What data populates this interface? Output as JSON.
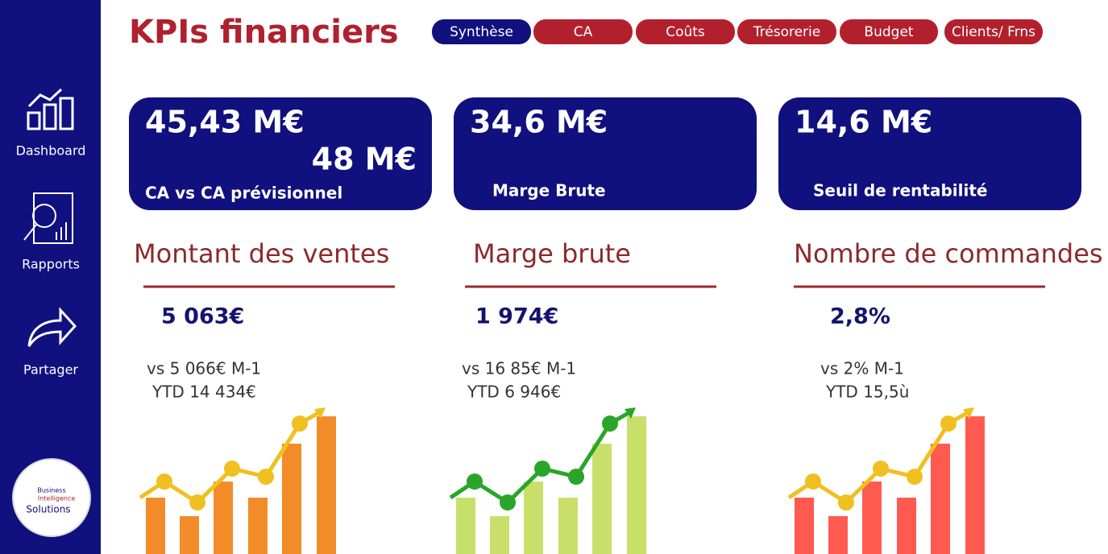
{
  "header": {
    "title": "KPIs financiers",
    "tabs": [
      "Synthèse",
      "CA",
      "Coûts",
      "Trésorerie",
      "Budget",
      "Clients/ Frns"
    ]
  },
  "sidebar": {
    "items": [
      "Dashboard",
      "Rapports",
      "Partager"
    ],
    "logo": [
      "Business",
      "Intelligence",
      "Solutions"
    ]
  },
  "cards": [
    {
      "values": [
        "45,43 M€",
        "48 M€"
      ],
      "label": "CA vs CA prévisionnel"
    },
    {
      "values": [
        "34,6 M€"
      ],
      "label": "Marge Brute"
    },
    {
      "values": [
        "14,6 M€"
      ],
      "label": "Seuil de rentabilité"
    }
  ],
  "panels": [
    {
      "title": "Montant des ventes",
      "value": "5 063€",
      "comparison": "vs 5 066€ M-1",
      "ytd": "YTD 14 434€"
    },
    {
      "title": "Marge brute",
      "value": "1 974€",
      "comparison": "vs 16 85€ M-1",
      "ytd": "YTD 6 946€"
    },
    {
      "title": "Nombre de commandes",
      "value": "2,8%",
      "comparison": "vs 2% M-1",
      "ytd": "YTD 15,5ù"
    }
  ]
}
